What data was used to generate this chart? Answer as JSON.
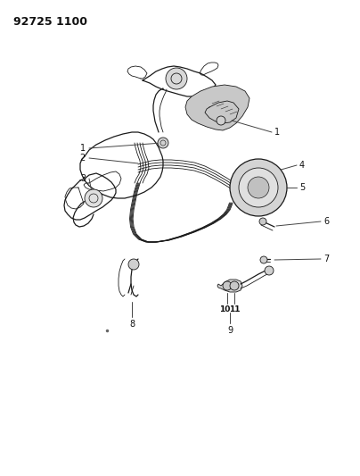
{
  "title_code": "92725 1100",
  "bg_color": "#ffffff",
  "line_color": "#1a1a1a",
  "label_color": "#111111",
  "leader_color": "#444444",
  "figsize": [
    4.04,
    5.33
  ],
  "dpi": 100,
  "lw_main": 0.9,
  "lw_thin": 0.6,
  "lw_leader": 0.7,
  "lw_thick": 1.5,
  "fs_label": 7,
  "fs_title": 9
}
